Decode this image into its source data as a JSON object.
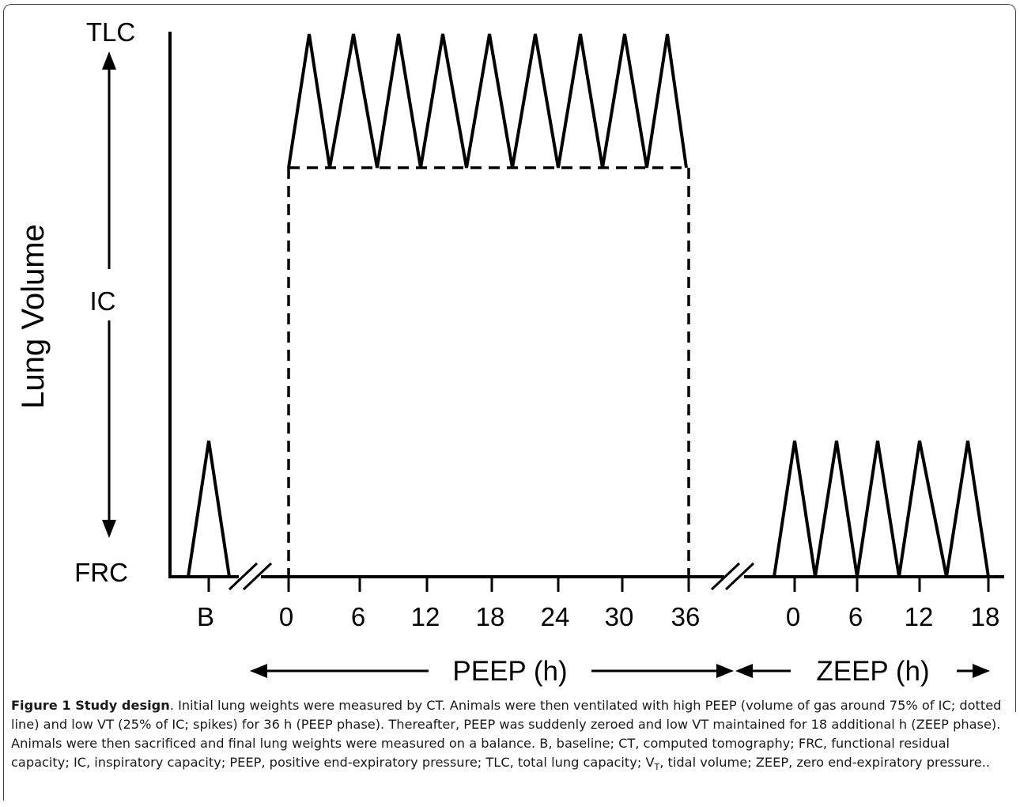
{
  "figure": {
    "y_axis_label": "Lung Volume",
    "volume_levels": {
      "top": "TLC",
      "middle": "IC",
      "bottom": "FRC"
    },
    "baseline_tick": "B",
    "peep_ticks": [
      "0",
      "6",
      "12",
      "18",
      "24",
      "30",
      "36"
    ],
    "zeep_ticks": [
      "0",
      "6",
      "12",
      "18"
    ],
    "peep_phase_label": "PEEP (h)",
    "zeep_phase_label": "ZEEP (h)"
  },
  "caption": {
    "figure_label": "Figure 1 Study design",
    "text_part1": ". Initial lung weights were measured by CT. Animals were then ventilated with high PEEP (volume of gas around 75% of IC; dotted line) and low VT (25% of IC; spikes) for 36 h (PEEP phase). Thereafter, PEEP was suddenly zeroed and low VT maintained for 18 additional h (ZEEP phase). Animals were then sacrificed and final lung weights were measured on a balance. B, baseline; CT, computed tomography; FRC, functional residual capacity; IC, inspiratory capacity; PEEP, positive end-expiratory pressure; TLC, total lung capacity; V",
    "subscript": "T",
    "text_part2": ", tidal volume; ZEEP, zero end-expiratory pressure.."
  }
}
